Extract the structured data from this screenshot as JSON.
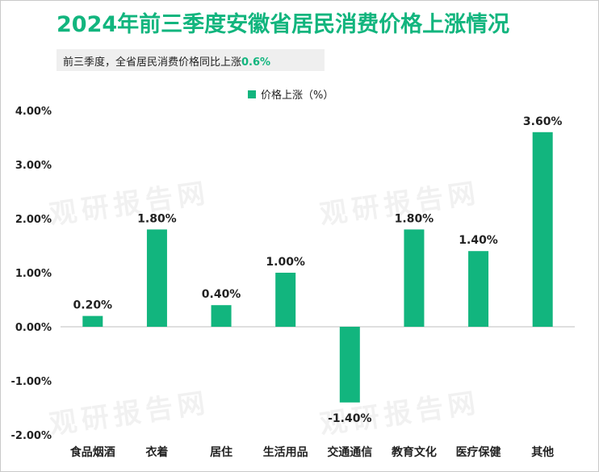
{
  "title": "2024年前三季度安徽省居民消费价格上涨情况",
  "subtitle": {
    "text": "前三季度，全省居民消费价格同比上涨",
    "value": "0.6%"
  },
  "legend": {
    "label": "价格上涨（%）"
  },
  "colors": {
    "accent": "#12b57e",
    "axis": "#bfbfbf",
    "text": "#222222"
  },
  "watermark": "观研报告网",
  "chart_data": {
    "type": "bar",
    "title": "2024年前三季度安徽省居民消费价格上涨情况",
    "categories": [
      "食品烟酒",
      "衣着",
      "居住",
      "生活用品",
      "交通通信",
      "教育文化",
      "医疗保健",
      "其他"
    ],
    "series": [
      {
        "name": "价格上涨（%）",
        "values": [
          0.2,
          1.8,
          0.4,
          1.0,
          -1.4,
          1.8,
          1.4,
          3.6
        ]
      }
    ],
    "data_labels": [
      "0.20%",
      "1.80%",
      "0.40%",
      "1.00%",
      "-1.40%",
      "1.80%",
      "1.40%",
      "3.60%"
    ],
    "ylim": [
      -2,
      4
    ],
    "yticks": [
      4,
      3,
      2,
      1,
      0,
      -1,
      -2
    ],
    "ytick_labels": [
      "4.00%",
      "3.00%",
      "2.00%",
      "1.00%",
      "0.00%",
      "-1.00%",
      "-2.00%"
    ],
    "grid": false,
    "legend_position": "top"
  }
}
